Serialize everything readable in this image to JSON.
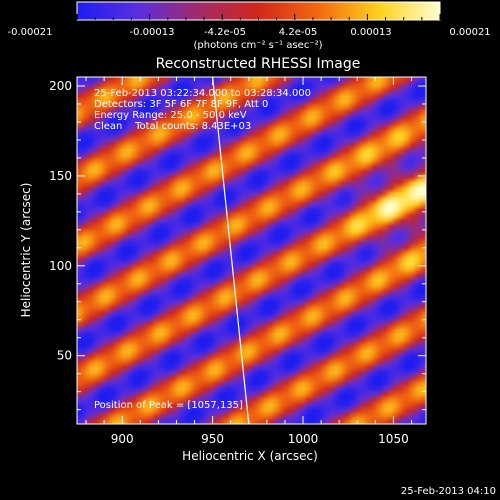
{
  "colorbar": {
    "tick_labels": [
      "-0.00021",
      "-0.00013",
      "-4.2e-05",
      "4.2e-05",
      "0.00013",
      "0.00021"
    ],
    "unit_label": "(photons cm⁻² s⁻¹ asec⁻²)",
    "range": [
      -0.00021,
      0.00021
    ],
    "stops": [
      "#1d1df0",
      "#5a2ee0",
      "#a22a6a",
      "#d2281a",
      "#f26a10",
      "#ffd21e",
      "#ffffd0"
    ]
  },
  "chart_data": {
    "type": "heatmap",
    "title": "Reconstructed RHESSI Image",
    "xlabel": "Heliocentric X (arcsec)",
    "ylabel": "Heliocentric Y (arcsec)",
    "xlim": [
      875,
      1068
    ],
    "ylim": [
      12,
      205
    ],
    "x_ticks": [
      900,
      950,
      1000,
      1050
    ],
    "y_ticks": [
      50,
      100,
      150,
      200
    ],
    "limb_line": [
      [
        950,
        205
      ],
      [
        970,
        12
      ]
    ],
    "annotations": [
      "25-Feb-2013 03:22:34.000 to 03:28:34.000",
      "Detectors: 3F 5F 6F 7F 8F 9F, Att 0",
      "Energy Range: 25.0 - 50.0 keV",
      "Clean    Total counts: 8.43E+03"
    ],
    "peak_label": "Position of Peak = [1057,135]",
    "peak": [
      1057,
      135
    ]
  },
  "footer_timestamp": "25-Feb-2013 04:10"
}
